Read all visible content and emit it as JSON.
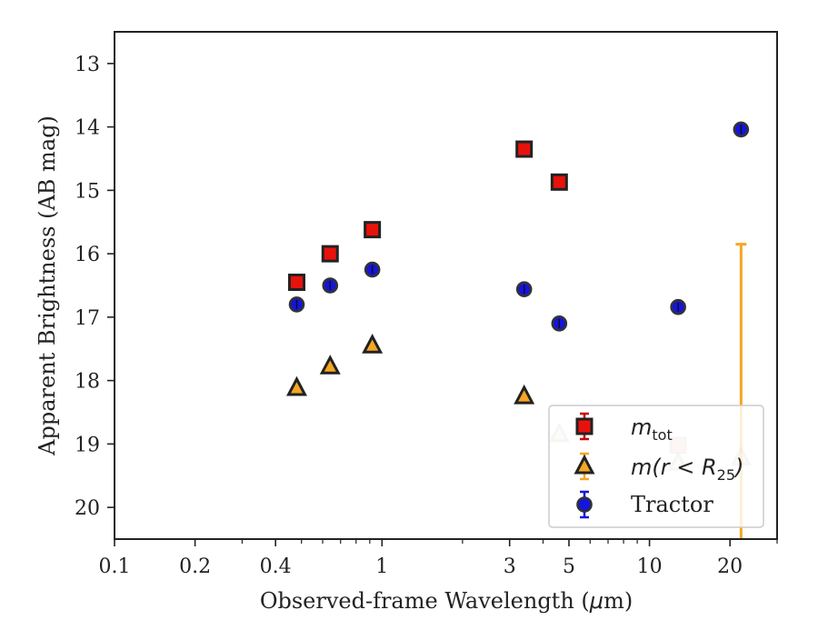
{
  "chart_data": {
    "type": "scatter",
    "title": "",
    "xlabel_parts": [
      "Observed-frame Wavelength (",
      "μ",
      "m)"
    ],
    "ylabel": "Apparent Brightness (AB mag)",
    "x_scale": "log",
    "xlim": [
      0.1,
      30
    ],
    "ylim": [
      20.5,
      12.5
    ],
    "y_inverted": true,
    "x_ticks": [
      0.1,
      0.2,
      0.4,
      1,
      3,
      5,
      10,
      20
    ],
    "x_tick_labels": [
      "0.1",
      "0.2",
      "0.4",
      "1",
      "3",
      "5",
      "10",
      "20"
    ],
    "y_ticks": [
      13,
      14,
      15,
      16,
      17,
      18,
      19,
      20
    ],
    "y_tick_labels": [
      "13",
      "14",
      "15",
      "16",
      "17",
      "18",
      "19",
      "20"
    ],
    "grid": false,
    "legend_position": "lower-right",
    "series": [
      {
        "key": "mtot",
        "legend_label": {
          "main": "m",
          "sub": "tot"
        },
        "marker": "square",
        "face_color": "#e8120c",
        "edge_color": "#222222",
        "errbar_color": "#cc0000",
        "points": [
          {
            "x": 0.48,
            "y": 16.45,
            "faded": false
          },
          {
            "x": 0.64,
            "y": 16.0,
            "faded": false
          },
          {
            "x": 0.92,
            "y": 15.62,
            "faded": false
          },
          {
            "x": 3.4,
            "y": 14.35,
            "faded": false
          },
          {
            "x": 4.6,
            "y": 14.87,
            "faded": false
          },
          {
            "x": 12.8,
            "y": 19.02,
            "faded": true
          }
        ]
      },
      {
        "key": "mr25",
        "legend_label": {
          "main": "m(r < R",
          "sub": "25",
          "close": ")"
        },
        "marker": "triangle",
        "face_color": "#f5a623",
        "edge_color": "#222222",
        "errbar_color": "#f5a623",
        "points": [
          {
            "x": 0.48,
            "y": 18.12,
            "faded": false
          },
          {
            "x": 0.64,
            "y": 17.78,
            "faded": false
          },
          {
            "x": 0.92,
            "y": 17.45,
            "faded": false
          },
          {
            "x": 3.4,
            "y": 18.25,
            "faded": false
          },
          {
            "x": 4.6,
            "y": 18.85,
            "faded": true
          },
          {
            "x": 12.8,
            "y": 19.3,
            "faded": true
          },
          {
            "x": 22.0,
            "y": 19.22,
            "faded": true,
            "errbar": [
              15.85,
              20.5
            ]
          }
        ]
      },
      {
        "key": "tractor",
        "legend_label": {
          "main": "Tractor"
        },
        "marker": "circle",
        "face_color": "#1414e0",
        "edge_color": "#333333",
        "errbar_color": "#1414e0",
        "points": [
          {
            "x": 0.48,
            "y": 16.8,
            "faded": false
          },
          {
            "x": 0.64,
            "y": 16.5,
            "faded": false
          },
          {
            "x": 0.92,
            "y": 16.25,
            "faded": false
          },
          {
            "x": 3.4,
            "y": 16.56,
            "faded": false
          },
          {
            "x": 4.6,
            "y": 17.1,
            "faded": false
          },
          {
            "x": 12.8,
            "y": 16.84,
            "faded": false
          },
          {
            "x": 22.0,
            "y": 14.04,
            "faded": false
          }
        ]
      }
    ]
  }
}
